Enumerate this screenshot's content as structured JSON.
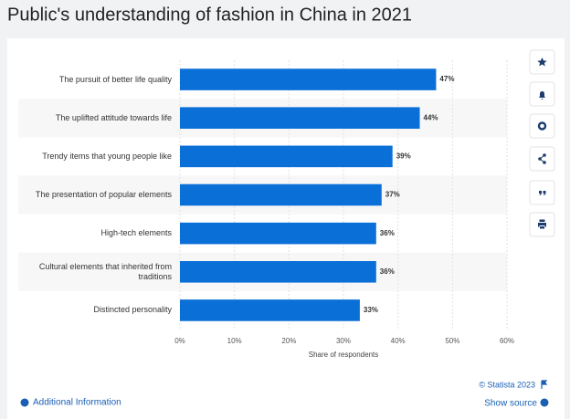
{
  "chart_data": {
    "type": "bar",
    "orientation": "horizontal",
    "title": "Public's understanding of fashion in China in 2021",
    "categories": [
      "The pursuit of better life quality",
      "The uplifted attitude towards life",
      "Trendy items that young people like",
      "The presentation of popular elements",
      "High-tech elements",
      "Cultural elements that inherited from traditions",
      "Distincted personality"
    ],
    "values": [
      47,
      44,
      39,
      37,
      36,
      36,
      33
    ],
    "value_labels": [
      "47%",
      "44%",
      "39%",
      "37%",
      "36%",
      "36%",
      "33%"
    ],
    "color": "#0b6fd8",
    "xlim": [
      0,
      60
    ],
    "xticks": [
      {
        "value": 0,
        "label": "0%"
      },
      {
        "value": 10,
        "label": "10%"
      },
      {
        "value": 20,
        "label": "20%"
      },
      {
        "value": 30,
        "label": "30%"
      },
      {
        "value": 40,
        "label": "40%"
      },
      {
        "value": 50,
        "label": "50%"
      },
      {
        "value": 60,
        "label": "60%"
      }
    ],
    "xlabel": "Share of respondents",
    "grid": true
  },
  "footer": {
    "copyright": "© Statista 2023",
    "additional_info": "Additional Information",
    "show_source": "Show source"
  }
}
